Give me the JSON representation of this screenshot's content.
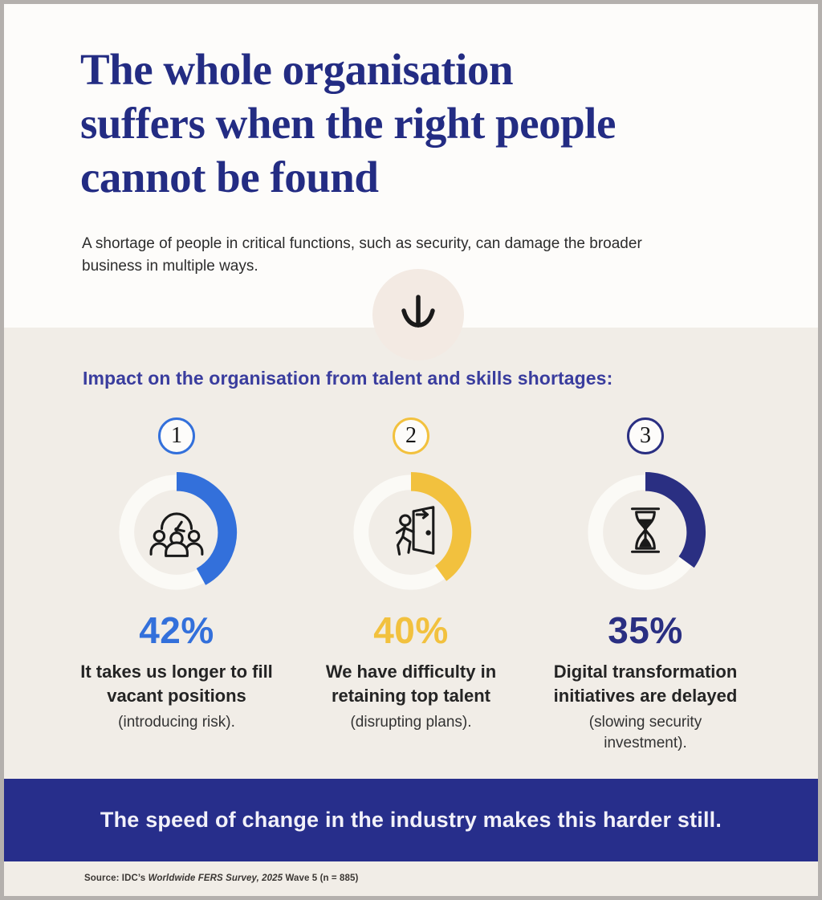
{
  "page": {
    "title": "The whole organisation\nsuffers when the right people\ncannot be found",
    "subtitle": "A shortage of people in critical functions, such as security, can damage the broader\nbusiness in multiple ways.",
    "background_top": "#fdfcfa",
    "background_section": "#f1ede7",
    "title_color": "#232c83"
  },
  "impact": {
    "heading": "Impact on the organisation from talent and skills shortages:",
    "items": [
      {
        "number": "1",
        "percent": 42,
        "percent_label": "42%",
        "color": "#3370db",
        "icon": "team-clock",
        "label": "It takes us longer to fill\nvacant positions",
        "note": "(introducing risk)."
      },
      {
        "number": "2",
        "percent": 40,
        "percent_label": "40%",
        "color": "#f2c13e",
        "icon": "exit-door",
        "label": "We have difficulty in\nretaining top talent",
        "note": "(disrupting plans)."
      },
      {
        "number": "3",
        "percent": 35,
        "percent_label": "35%",
        "color": "#2a2f82",
        "icon": "hourglass",
        "label": "Digital transformation\ninitiatives are delayed",
        "note": "(slowing security\ninvestment)."
      }
    ]
  },
  "banner": {
    "text": "The speed of change in the industry makes this harder still.",
    "background": "#272e8b"
  },
  "source": {
    "prefix": "Source: IDC’s ",
    "italic": "Worldwide FERS Survey, 2025",
    "suffix": " Wave 5 (n = 885)"
  },
  "chart_data": {
    "type": "pie",
    "subtype": "donut-percentage-trio",
    "title": "Impact on the organisation from talent and skills shortages",
    "categories": [
      "It takes us longer to fill vacant positions (introducing risk)",
      "We have difficulty in retaining top talent (disrupting plans)",
      "Digital transformation initiatives are delayed (slowing security investment)"
    ],
    "values": [
      42,
      40,
      35
    ],
    "colors": [
      "#3370db",
      "#f2c13e",
      "#2a2f82"
    ],
    "track_color": "#fbfaf6",
    "start_angle_deg": 0,
    "direction": "clockwise",
    "legend_position": "below-each-donut"
  }
}
